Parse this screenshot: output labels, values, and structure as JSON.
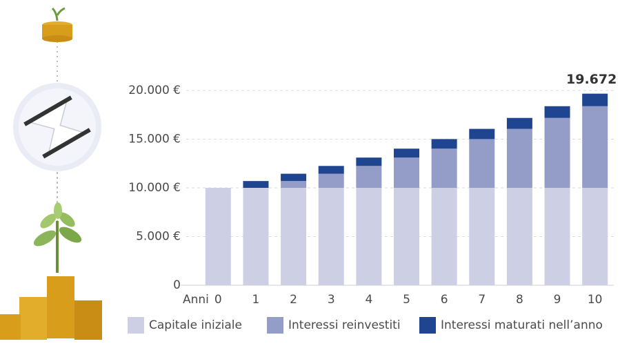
{
  "chart_data": {
    "type": "stacked_bar",
    "x_label": "Anni",
    "annotation": "19.672",
    "categories": [
      "0",
      "1",
      "2",
      "3",
      "4",
      "5",
      "6",
      "7",
      "8",
      "9",
      "10"
    ],
    "series": [
      {
        "name": "Capitale iniziale",
        "color": "#cdd0e4",
        "values": [
          10000,
          10000,
          10000,
          10000,
          10000,
          10000,
          10000,
          10000,
          10000,
          10000,
          10000
        ]
      },
      {
        "name": "Interessi reinvestiti",
        "color": "#949dc8",
        "values": [
          0,
          0,
          700,
          1449,
          2250,
          3108,
          4026,
          5007,
          6058,
          7182,
          8385
        ]
      },
      {
        "name": "Interessi maturati nell’anno",
        "color": "#1f4591",
        "values": [
          0,
          700,
          749,
          801,
          858,
          918,
          982,
          1050,
          1124,
          1203,
          1287
        ]
      }
    ],
    "ylim": [
      0,
      20000
    ],
    "yticks": [
      0,
      {
        "value": 5000,
        "label": "5.000 €"
      },
      {
        "value": 10000,
        "label": "10.000 €"
      },
      {
        "value": 15000,
        "label": "15.000 €"
      },
      {
        "value": 20000,
        "label": "20.000 €"
      }
    ],
    "grid": true
  }
}
